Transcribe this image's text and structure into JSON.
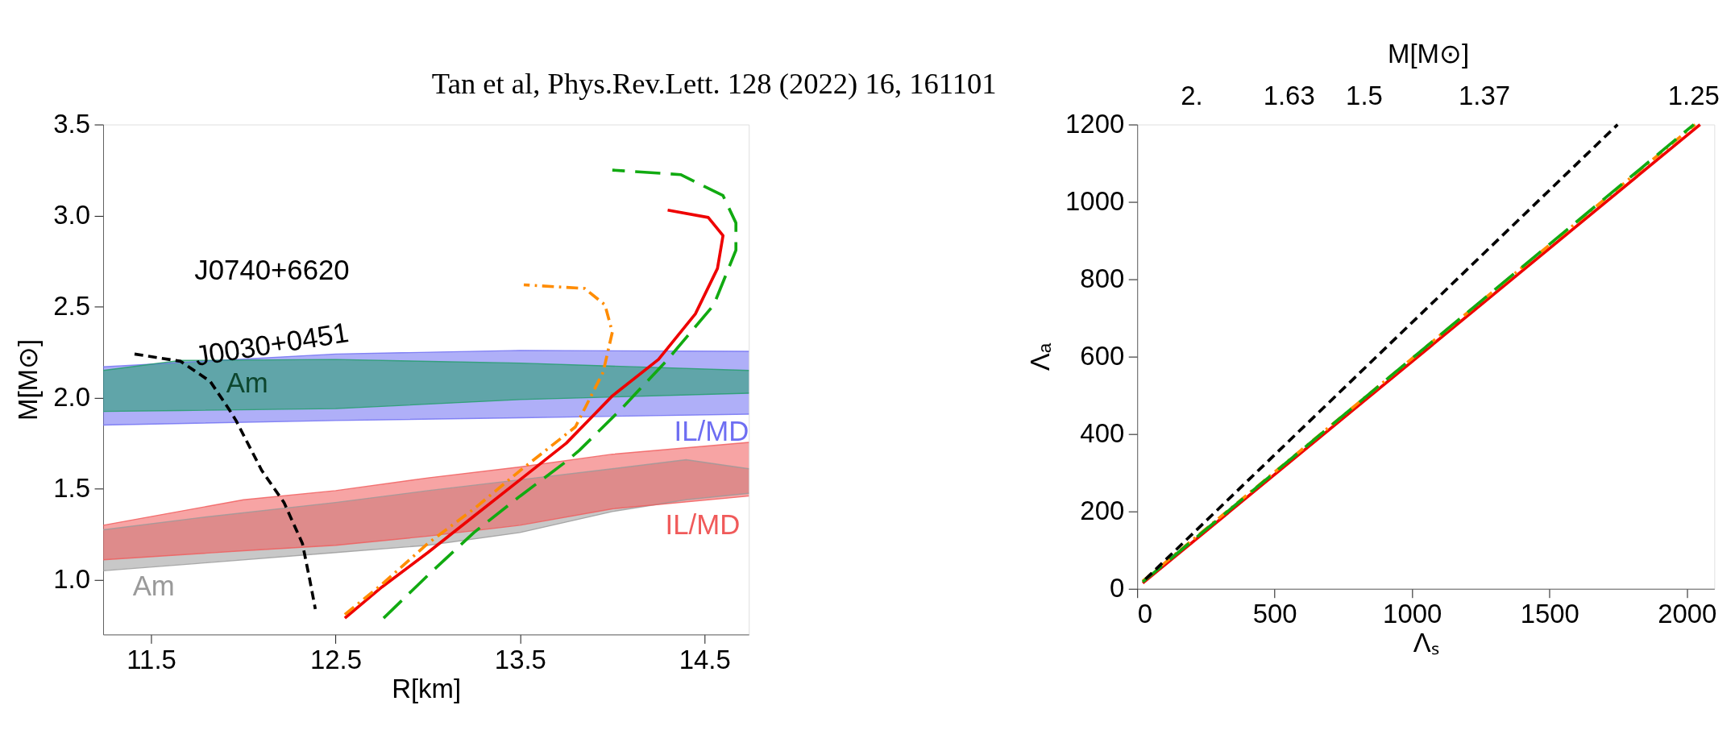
{
  "chart_data": [
    {
      "type": "line",
      "title": "Tan et al, Phys.Rev.Lett. 128 (2022) 16, 161101",
      "xlabel": "R[km]",
      "ylabel": "M[M⊙]",
      "xlim": [
        11.24,
        14.74
      ],
      "xticks": [
        11.5,
        12.5,
        13.5,
        14.5
      ],
      "ylim": [
        0.7,
        3.5
      ],
      "yticks": [
        {
          "value": 1,
          "label": "1.0"
        },
        1.5,
        {
          "value": 2,
          "label": "2.0"
        },
        2.5,
        {
          "value": 3,
          "label": "3.0"
        },
        3.5
      ],
      "grid": false,
      "annotations": [
        "J0740+6620",
        "J0030+0451"
      ],
      "series": [
        {
          "type": "line",
          "name": "IL/MD",
          "color": "#6e6ef2",
          "x": [
            11.24,
            12.5,
            13.5,
            14.74
          ],
          "values": [
            2.17,
            2.24,
            2.26,
            2.255
          ],
          "upper": [
            2.17,
            2.24,
            2.26,
            2.255
          ],
          "lower": [
            1.85,
            1.875,
            1.89,
            1.91
          ]
        },
        {
          "type": "line",
          "name": "Am",
          "color": "#1f9d68",
          "x": [
            11.24,
            11.66,
            12.5,
            13.5,
            14.74
          ],
          "values": [
            2.15,
            2.205,
            2.21,
            2.19,
            2.15
          ],
          "upper": [
            2.15,
            2.205,
            2.21,
            2.19,
            2.15
          ],
          "lower": [
            1.925,
            1.93,
            1.94,
            1.99,
            2.025
          ]
        },
        {
          "type": "line",
          "name": "Am",
          "color": "#9a9a9a",
          "x": [
            11.24,
            11.75,
            12.5,
            13.0,
            13.5,
            14.0,
            14.4,
            14.74
          ],
          "values": [
            1.275,
            1.34,
            1.425,
            1.49,
            1.55,
            1.61,
            1.66,
            1.61
          ],
          "upper": [
            1.275,
            1.34,
            1.425,
            1.49,
            1.55,
            1.61,
            1.66,
            1.61
          ],
          "lower": [
            1.05,
            1.09,
            1.15,
            1.19,
            1.26,
            1.375,
            1.44,
            1.475
          ]
        },
        {
          "type": "line",
          "name": "IL/MD",
          "color": "#f05a5a",
          "x": [
            11.24,
            12.0,
            12.5,
            13.0,
            13.5,
            14.0,
            14.74
          ],
          "values": [
            1.3,
            1.44,
            1.49,
            1.56,
            1.62,
            1.69,
            1.755
          ],
          "upper": [
            1.3,
            1.44,
            1.49,
            1.56,
            1.62,
            1.69,
            1.755
          ],
          "lower": [
            1.11,
            1.16,
            1.19,
            1.24,
            1.3,
            1.39,
            1.46
          ]
        },
        {
          "color": "#000000",
          "line_style": "dashed",
          "x": [
            11.41,
            11.66,
            11.82,
            11.92,
            11.96,
            12.1,
            12.22,
            12.32,
            12.36,
            12.39
          ],
          "values": [
            2.24,
            2.2,
            2.09,
            1.94,
            1.875,
            1.6,
            1.425,
            1.2,
            1.0,
            0.84
          ]
        },
        {
          "color": "#ff8c00",
          "line_style": "dashdot",
          "x": [
            12.55,
            12.75,
            13.0,
            13.25,
            13.5,
            13.8,
            13.95,
            14.0,
            13.96,
            13.85,
            13.52
          ],
          "values": [
            0.81,
            0.975,
            1.2,
            1.39,
            1.6,
            1.84,
            2.14,
            2.36,
            2.51,
            2.6,
            2.62
          ]
        },
        {
          "color": "#ee0000",
          "line_style": "solid",
          "x": [
            12.55,
            12.75,
            13.0,
            13.25,
            13.5,
            13.75,
            14.0,
            14.25,
            14.45,
            14.57,
            14.6,
            14.52,
            14.3
          ],
          "values": [
            0.79,
            0.96,
            1.15,
            1.35,
            1.55,
            1.75,
            2.01,
            2.21,
            2.46,
            2.71,
            2.89,
            2.99,
            3.03
          ]
        },
        {
          "color": "#11aa11",
          "line_style": "longdash",
          "x": [
            12.76,
            13.0,
            13.25,
            13.5,
            13.75,
            13.82,
            14.05,
            14.3,
            14.55,
            14.67,
            14.67,
            14.6,
            14.37,
            14.0
          ],
          "values": [
            0.79,
            1.025,
            1.26,
            1.46,
            1.65,
            1.71,
            1.94,
            2.21,
            2.51,
            2.81,
            2.96,
            3.11,
            3.225,
            3.25
          ]
        }
      ]
    },
    {
      "type": "line",
      "xlabel": "Λₛ",
      "ylabel": "Λₐ",
      "xlim": [
        0,
        2100
      ],
      "xticks": [
        0,
        500,
        1000,
        1500,
        2000
      ],
      "ylim": [
        0,
        1200
      ],
      "yticks": [
        0,
        200,
        400,
        600,
        800,
        1000,
        1200
      ],
      "grid": false,
      "annotations": [
        "M[M⊙]",
        "2.",
        "1.63",
        "1.5",
        "1.37",
        "1.25"
      ],
      "series": [
        {
          "color": "#000000",
          "line_style": "dashed",
          "x": [
            30,
            1748
          ],
          "values": [
            25,
            1200
          ]
        },
        {
          "color": "#ff8c00",
          "line_style": "dashdot",
          "x": [
            20,
            2030
          ],
          "values": [
            20,
            1200
          ]
        },
        {
          "color": "#ee0000",
          "line_style": "solid",
          "x": [
            20,
            2048
          ],
          "values": [
            15,
            1200
          ]
        },
        {
          "color": "#11aa11",
          "line_style": "longdash",
          "x": [
            20,
            2025
          ],
          "values": [
            18,
            1200
          ]
        }
      ]
    }
  ]
}
